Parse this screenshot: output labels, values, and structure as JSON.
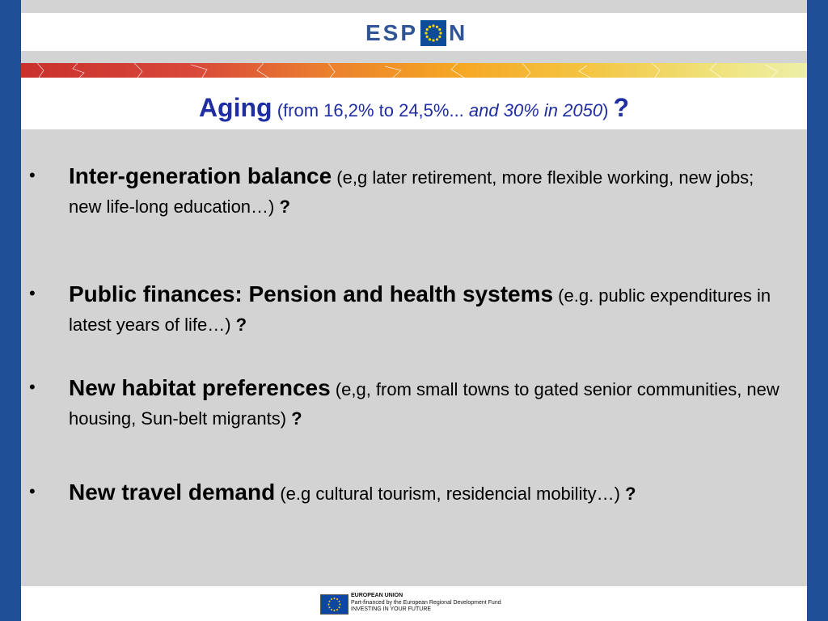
{
  "header": {
    "logo_left": "ESP",
    "logo_right": "N"
  },
  "title": {
    "main": "Aging",
    "open": " (from 16,2% to 24,5%... ",
    "italic": "and 30% in 2050",
    "close": ") ",
    "question": "?"
  },
  "bullets": [
    {
      "symbol": "•",
      "heading": "Inter-generation balance",
      "detail": " (e,g later retirement, more flexible working, new  jobs; new life-long education…) ",
      "question": "?"
    },
    {
      "symbol": "•",
      "heading": "Public finances: Pension and health systems",
      "detail": " (e.g. public expenditures in latest years of life…) ",
      "question": "?"
    },
    {
      "symbol": "•",
      "heading": "New habitat preferences",
      "detail": " (e,g, from small towns to gated senior communities, new housing, Sun-belt migrants) ",
      "question": "?"
    },
    {
      "symbol": "•",
      "heading": "New travel demand",
      "detail": " (e.g cultural tourism, residencial mobility…) ",
      "question": "?"
    }
  ],
  "footer": {
    "line1": "EUROPEAN UNION",
    "line2": "Part-financed by the European Regional Development Fund",
    "line3": "INVESTING IN YOUR FUTURE"
  },
  "colors": {
    "frame_blue": "#1f4f96",
    "title_blue": "#1f2ea3",
    "eu_flag_blue": "#0e47a1"
  }
}
